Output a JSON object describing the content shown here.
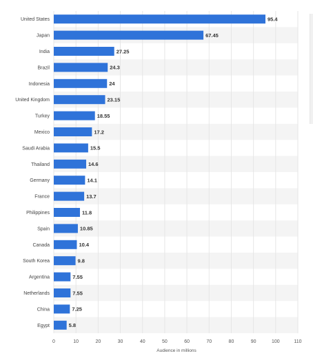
{
  "chart_data": {
    "type": "bar",
    "orientation": "horizontal",
    "categories": [
      "United States",
      "Japan",
      "India",
      "Brazil",
      "Indonesia",
      "United Kingdom",
      "Turkey",
      "Mexico",
      "Saudi Arabia",
      "Thailand",
      "Germany",
      "France",
      "Philippines",
      "Spain",
      "Canada",
      "South Korea",
      "Argentina",
      "Netherlands",
      "China",
      "Egypt"
    ],
    "values": [
      95.4,
      67.45,
      27.25,
      24.3,
      24,
      23.15,
      18.55,
      17.2,
      15.5,
      14.6,
      14.1,
      13.7,
      11.8,
      10.85,
      10.4,
      9.8,
      7.55,
      7.55,
      7.25,
      5.8
    ],
    "value_labels": [
      "95.4",
      "67.45",
      "27.25",
      "24.3",
      "24",
      "23.15",
      "18.55",
      "17.2",
      "15.5",
      "14.6",
      "14.1",
      "13.7",
      "11.8",
      "10.85",
      "10.4",
      "9.8",
      "7.55",
      "7.55",
      "7.25",
      "5.8"
    ],
    "xlabel": "Audience in millions",
    "ylabel": "",
    "xlim": [
      0,
      110
    ],
    "xticks": [
      0,
      10,
      20,
      30,
      40,
      50,
      60,
      70,
      80,
      90,
      100,
      110
    ],
    "grid": true,
    "bar_color": "#2f73d9",
    "stripe_color": "#f4f4f4",
    "grid_color": "#e6e6e6"
  }
}
